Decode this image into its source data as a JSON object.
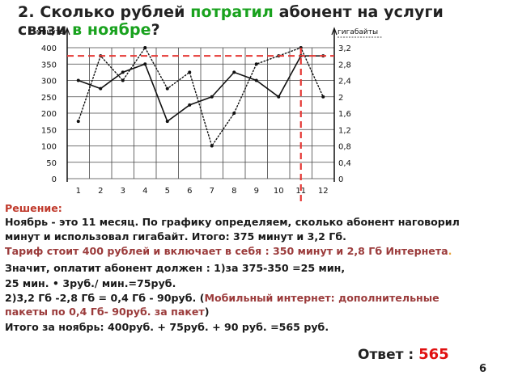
{
  "title": {
    "part1": "2. Сколько рублей ",
    "highlight1": "потратил",
    "part2": " абонент на услуги",
    "part3": "связи ",
    "highlight2": "в ноябре",
    "part4": "?"
  },
  "chart_data": {
    "type": "line",
    "left_axis_label": "минуты",
    "right_axis_label": "гигабайты",
    "x": [
      1,
      2,
      3,
      4,
      5,
      6,
      7,
      8,
      9,
      10,
      11,
      12
    ],
    "x_ticks": [
      "1",
      "2",
      "3",
      "4",
      "5",
      "6",
      "7",
      "8",
      "9",
      "10",
      "11",
      "12"
    ],
    "y_left_ticks": [
      "0",
      "50",
      "100",
      "150",
      "200",
      "250",
      "300",
      "350",
      "400"
    ],
    "y_right_ticks": [
      "0",
      "0,4",
      "0,8",
      "1,2",
      "1,6",
      "2",
      "2,4",
      "2,8",
      "3,2"
    ],
    "ylim_left": [
      0,
      400
    ],
    "ylim_right": [
      0,
      3.2
    ],
    "series": [
      {
        "style": "solid",
        "axis": "left",
        "values": [
          300,
          275,
          325,
          350,
          175,
          225,
          250,
          325,
          300,
          250,
          375,
          375
        ]
      },
      {
        "style": "dotted",
        "axis": "right",
        "values": [
          1.4,
          3.0,
          2.4,
          3.2,
          2.2,
          2.6,
          0.8,
          1.6,
          2.8,
          3.0,
          3.2,
          2.0
        ]
      }
    ],
    "highlight": {
      "month": 11,
      "minutes": 375,
      "gigabytes": 3.2,
      "color": "#e53935"
    }
  },
  "solution": {
    "heading": "Решение:",
    "line1": "Ноябрь - это 11 месяц. По графику определяем, сколько абонент наговорил",
    "line2": "минут и использовал гигабайт. Итого: 375 минут и 3,2 Гб.",
    "tariff": "Тариф стоит 400 рублей и включает в себя : 350 минут и 2,8 Гб Интернета",
    "tariff_dot": ".",
    "line4": "Значит, оплатит абонент должен : 1)за 375-350 =25 мин,",
    "line5": "25 мин. • 3руб./ мин.=75руб.",
    "line6a": "2)3,2 Гб -2,8 Гб = 0,4 Гб - 90руб. (",
    "line6b": "Мобильный интернет: дополнительные",
    "line7a": " пакеты по 0,4 Гб- 90руб. за пакет",
    "line7b": ")",
    "line8": "Итого за ноябрь: 400руб. + 75руб. + 90 руб. =565 руб."
  },
  "answer": {
    "label": "Ответ : ",
    "value": "565"
  },
  "page_number": "6"
}
